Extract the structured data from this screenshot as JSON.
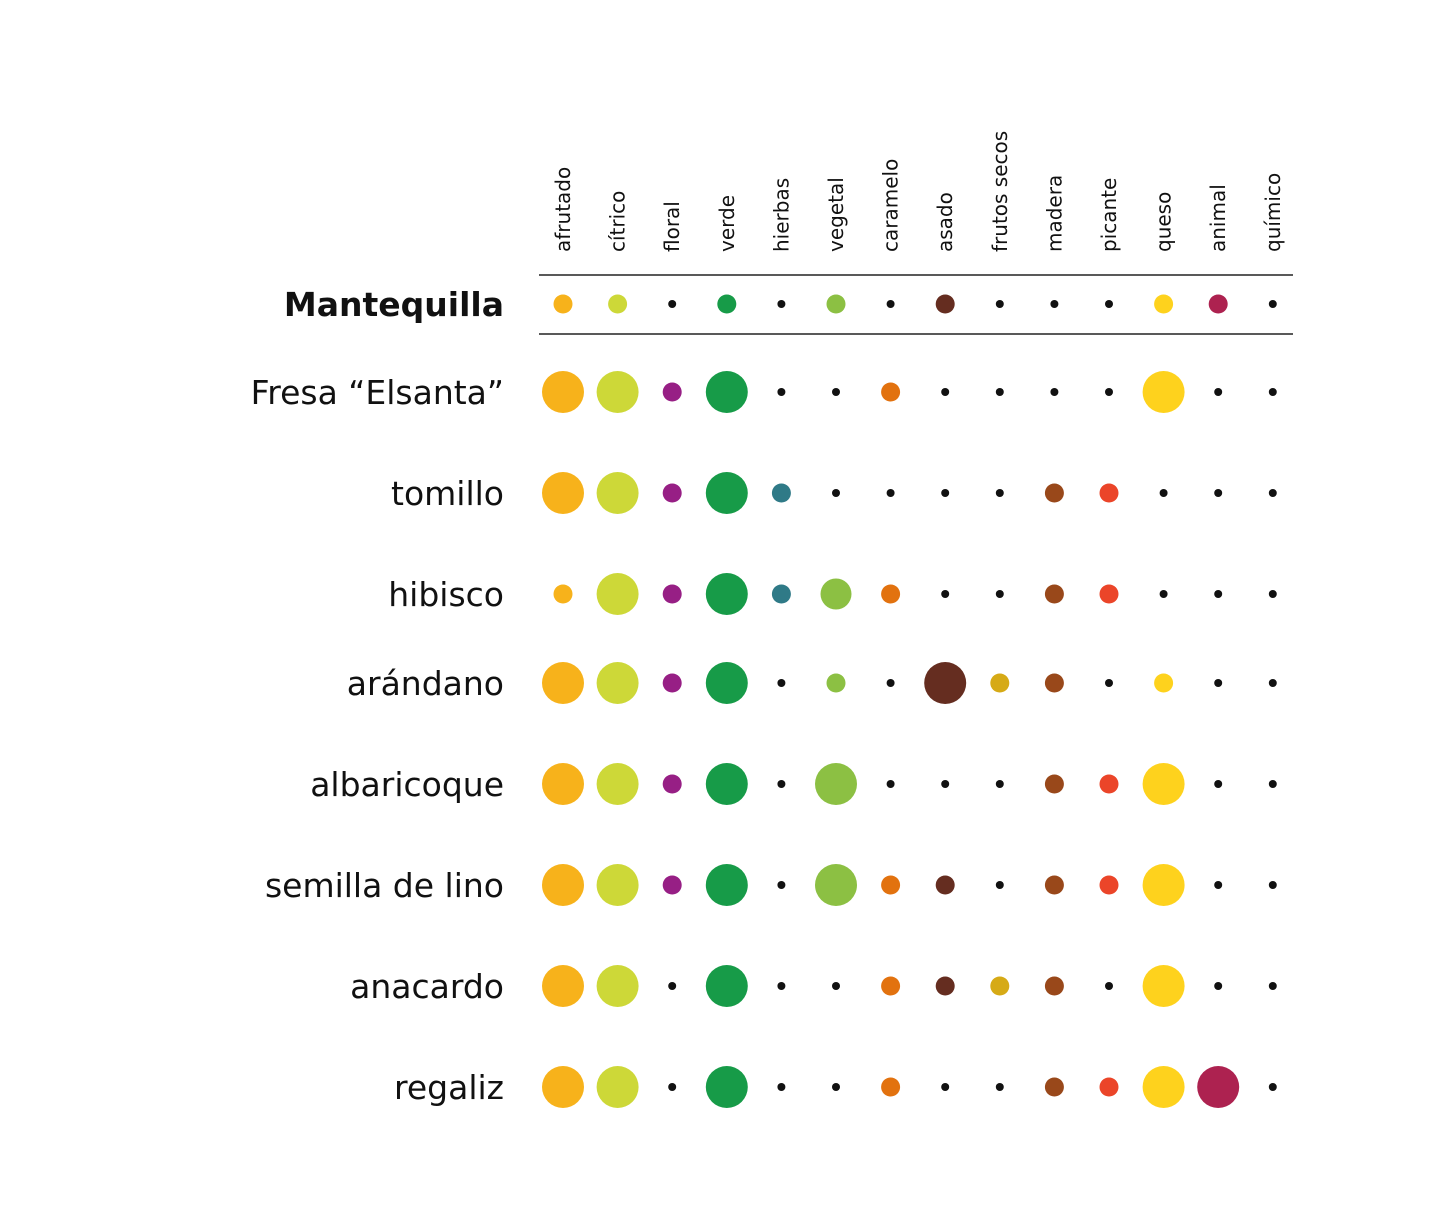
{
  "chart_data": {
    "type": "dot-matrix",
    "columns": [
      "afrutado",
      "cítrico",
      "floral",
      "verde",
      "hierbas",
      "vegetal",
      "caramelo",
      "asado",
      "frutos secos",
      "madera",
      "picante",
      "queso",
      "animal",
      "químico"
    ],
    "column_colors": [
      "#F7B21B",
      "#CDD838",
      "#971F85",
      "#179B48",
      "#2F7A87",
      "#8CC043",
      "#E2720F",
      "#652D20",
      "#D6AA16",
      "#99481A",
      "#EB4529",
      "#FED21D",
      "#AD2250",
      "#111111"
    ],
    "intensity_scale": "0 = trace (small black dot), 1–4 = increasing circle size",
    "base": {
      "label": "Mantequilla",
      "values": [
        1,
        1,
        0,
        1,
        0,
        1,
        0,
        1,
        0,
        0,
        0,
        1,
        1,
        0
      ]
    },
    "rows": [
      {
        "label": "Fresa “Elsanta”",
        "values": [
          3,
          3,
          1,
          3,
          0,
          0,
          1,
          0,
          0,
          0,
          0,
          3,
          0,
          0
        ]
      },
      {
        "label": "tomillo",
        "values": [
          3,
          3,
          1,
          3,
          1,
          0,
          0,
          0,
          0,
          1,
          1,
          0,
          0,
          0
        ]
      },
      {
        "label": "hibisco",
        "values": [
          1,
          3,
          1,
          3,
          1,
          2,
          1,
          0,
          0,
          1,
          1,
          0,
          0,
          0
        ]
      },
      {
        "label": "arándano",
        "values": [
          3,
          3,
          1,
          3,
          0,
          1,
          0,
          3,
          1,
          1,
          0,
          1,
          0,
          0
        ]
      },
      {
        "label": "albaricoque",
        "values": [
          3,
          3,
          1,
          3,
          0,
          3,
          0,
          0,
          0,
          1,
          1,
          3,
          0,
          0
        ]
      },
      {
        "label": "semilla de lino",
        "values": [
          3,
          3,
          1,
          3,
          0,
          3,
          1,
          1,
          0,
          1,
          1,
          3,
          0,
          0
        ]
      },
      {
        "label": "anacardo",
        "values": [
          3,
          3,
          0,
          3,
          0,
          0,
          1,
          1,
          1,
          1,
          0,
          3,
          0,
          0
        ]
      },
      {
        "label": "regaliz",
        "values": [
          3,
          3,
          0,
          3,
          0,
          0,
          1,
          0,
          0,
          1,
          1,
          3,
          3,
          0
        ]
      }
    ]
  }
}
